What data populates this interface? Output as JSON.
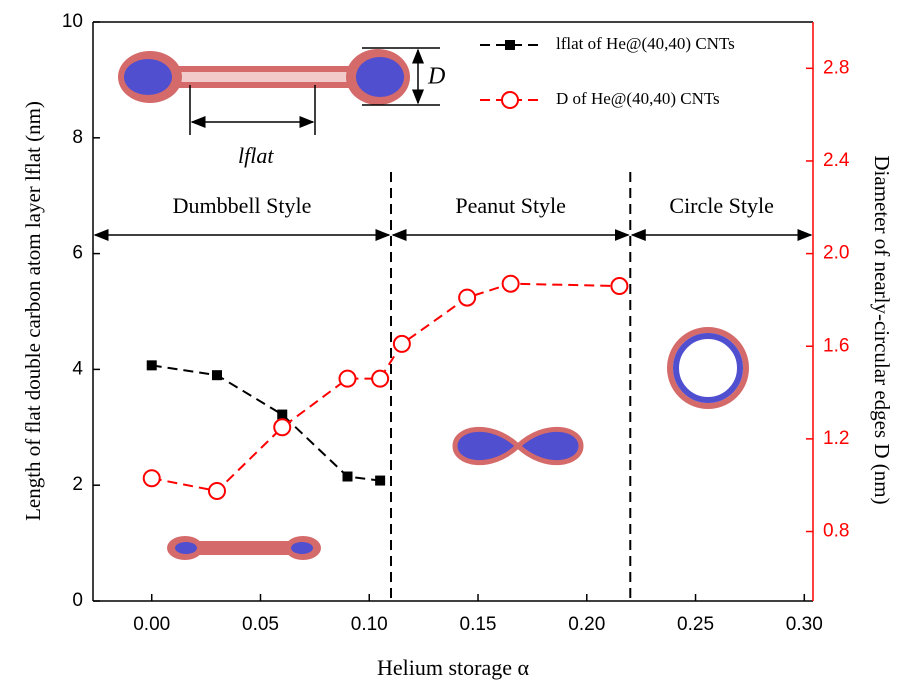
{
  "chart_data": {
    "type": "line",
    "x_label": "Helium storage α",
    "y_label": "Length of flat double carbon atom layer lflat (nm)",
    "y2_label": "Diameter of nearly-circular edges D (nm)",
    "xlim": [
      -0.027,
      0.304
    ],
    "xticks": [
      {
        "value": 0,
        "label": "0.00"
      },
      0.05,
      {
        "value": 0.1,
        "label": "0.10"
      },
      0.15,
      {
        "value": 0.2,
        "label": "0.20"
      },
      0.25,
      {
        "value": 0.3,
        "label": "0.30"
      }
    ],
    "ylim": [
      0,
      10
    ],
    "yticks": [
      0,
      2,
      4,
      6,
      8,
      10
    ],
    "y2lim": [
      0.5,
      3.0
    ],
    "y2ticks": [
      0.8,
      1.2,
      1.6,
      {
        "value": 2,
        "label": "2.0"
      },
      2.4,
      2.8
    ],
    "series": [
      {
        "name": "lflat of He@(40,40) CNTs",
        "color": "#000000",
        "marker": "square",
        "x": [
          0,
          0.03,
          0.06,
          0.09,
          0.105
        ],
        "values": [
          4.07,
          3.9,
          3.22,
          2.15,
          2.08
        ]
      },
      {
        "name": "D of He@(40,40) CNTs",
        "color": "#ff0000",
        "marker": "circle",
        "axis": "y2",
        "x": [
          0,
          0.03,
          0.06,
          0.09,
          0.105,
          0.115,
          0.145,
          0.165,
          0.215
        ],
        "values": [
          1.03,
          0.975,
          1.25,
          1.46,
          1.46,
          1.61,
          1.81,
          1.87,
          1.86
        ]
      }
    ],
    "regions": [
      "Dumbbell Style",
      "Peanut Style",
      "Circle Style"
    ],
    "dividers": [
      0.11,
      0.22
    ],
    "annotations": [
      "D",
      "lflat"
    ]
  }
}
